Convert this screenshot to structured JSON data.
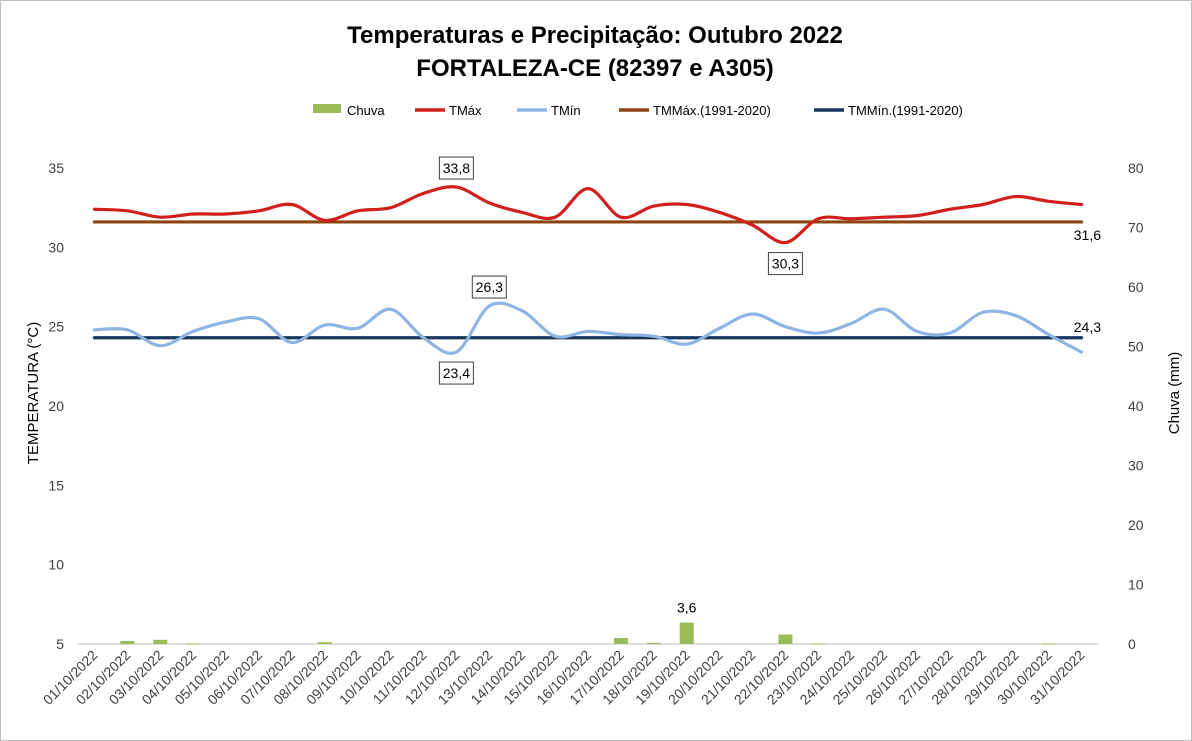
{
  "chart_data": {
    "type": "line",
    "title_line1": "Temperaturas e Precipitação: Outubro 2022",
    "title_line2": "FORTALEZA-CE (82397 e A305)",
    "ylabel_left": "TEMPERATURA (°C)",
    "ylabel_right": "Chuva (mm)",
    "ylim_left": [
      5,
      35
    ],
    "yticks_left": [
      "5",
      "10",
      "15",
      "20",
      "25",
      "30",
      "35"
    ],
    "ylim_right": [
      0,
      80
    ],
    "yticks_right": [
      "0",
      "10",
      "20",
      "30",
      "40",
      "50",
      "60",
      "70",
      "80"
    ],
    "categories": [
      "01/10/2022",
      "02/10/2022",
      "03/10/2022",
      "04/10/2022",
      "05/10/2022",
      "06/10/2022",
      "07/10/2022",
      "08/10/2022",
      "09/10/2022",
      "10/10/2022",
      "11/10/2022",
      "12/10/2022",
      "13/10/2022",
      "14/10/2022",
      "15/10/2022",
      "16/10/2022",
      "17/10/2022",
      "18/10/2022",
      "19/10/2022",
      "20/10/2022",
      "21/10/2022",
      "22/10/2022",
      "23/10/2022",
      "24/10/2022",
      "25/10/2022",
      "26/10/2022",
      "27/10/2022",
      "28/10/2022",
      "29/10/2022",
      "30/10/2022",
      "31/10/2022"
    ],
    "series": [
      {
        "name": "Chuva",
        "kind": "bar",
        "axis": "right",
        "color": "#9bbb59",
        "values": [
          0,
          0.5,
          0.7,
          0.1,
          0,
          0,
          0,
          0.3,
          0,
          0,
          0,
          0,
          0,
          0,
          0,
          0,
          1.0,
          0.2,
          3.6,
          0,
          0,
          1.6,
          0.1,
          0,
          0,
          0,
          0,
          0,
          0,
          0.1,
          0
        ]
      },
      {
        "name": "TMáx",
        "kind": "line",
        "axis": "left",
        "color": "#d0201e",
        "values": [
          32.4,
          32.3,
          31.9,
          32.1,
          32.1,
          32.3,
          32.7,
          31.7,
          32.3,
          32.5,
          33.4,
          33.8,
          32.8,
          32.2,
          31.9,
          33.7,
          31.9,
          32.6,
          32.7,
          32.2,
          31.4,
          30.3,
          31.8,
          31.8,
          31.9,
          32.0,
          32.4,
          32.7,
          33.2,
          32.9,
          32.7
        ]
      },
      {
        "name": "TMín",
        "kind": "line",
        "axis": "left",
        "color": "#8db4e2",
        "values": [
          24.8,
          24.8,
          23.8,
          24.7,
          25.3,
          25.5,
          24.0,
          25.1,
          24.9,
          26.1,
          24.3,
          23.4,
          26.3,
          26.0,
          24.4,
          24.7,
          24.5,
          24.4,
          23.9,
          24.9,
          25.8,
          25.0,
          24.6,
          25.2,
          26.1,
          24.7,
          24.6,
          25.9,
          25.7,
          24.5,
          23.4
        ]
      },
      {
        "name": "TMMáx.(1991-2020)",
        "kind": "line",
        "axis": "left",
        "color": "#8b4513",
        "values": [
          31.6,
          31.6,
          31.6,
          31.6,
          31.6,
          31.6,
          31.6,
          31.6,
          31.6,
          31.6,
          31.6,
          31.6,
          31.6,
          31.6,
          31.6,
          31.6,
          31.6,
          31.6,
          31.6,
          31.6,
          31.6,
          31.6,
          31.6,
          31.6,
          31.6,
          31.6,
          31.6,
          31.6,
          31.6,
          31.6,
          31.6
        ]
      },
      {
        "name": "TMMín.(1991-2020)",
        "kind": "line",
        "axis": "left",
        "color": "#17375e",
        "values": [
          24.3,
          24.3,
          24.3,
          24.3,
          24.3,
          24.3,
          24.3,
          24.3,
          24.3,
          24.3,
          24.3,
          24.3,
          24.3,
          24.3,
          24.3,
          24.3,
          24.3,
          24.3,
          24.3,
          24.3,
          24.3,
          24.3,
          24.3,
          24.3,
          24.3,
          24.3,
          24.3,
          24.3,
          24.3,
          24.3,
          24.3
        ]
      }
    ],
    "annotations": [
      {
        "series": 1,
        "index": 11,
        "text": "33,8",
        "boxed": true,
        "pos": "above"
      },
      {
        "series": 1,
        "index": 21,
        "text": "30,3",
        "boxed": true,
        "pos": "below"
      },
      {
        "series": 2,
        "index": 12,
        "text": "26,3",
        "boxed": true,
        "pos": "above"
      },
      {
        "series": 2,
        "index": 11,
        "text": "23,4",
        "boxed": true,
        "pos": "below"
      },
      {
        "series": 0,
        "index": 18,
        "text": "3,6",
        "boxed": false,
        "pos": "above"
      },
      {
        "series": 3,
        "index": 30,
        "text": "31,6",
        "boxed": false,
        "pos": "below"
      },
      {
        "series": 4,
        "index": 30,
        "text": "24,3",
        "boxed": false,
        "pos": "above"
      }
    ],
    "legend_position": "top"
  }
}
